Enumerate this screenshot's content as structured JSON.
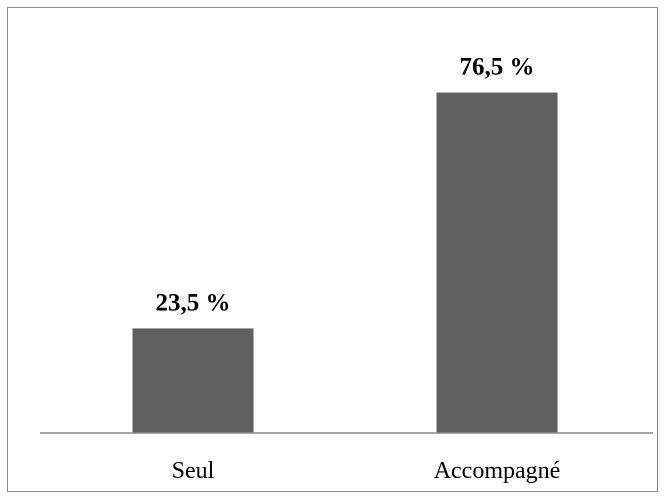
{
  "chart_data": {
    "type": "bar",
    "categories": [
      "Seul",
      "Accompagné"
    ],
    "values": [
      23.5,
      76.5
    ],
    "data_labels": [
      "23,5 %",
      "76,5 %"
    ],
    "title": "",
    "xlabel": "",
    "ylabel": "",
    "ylim": [
      0,
      100
    ],
    "grid": false,
    "legend": "none",
    "colors": {
      "bar": "#5f5f5f",
      "axis": "#8a8a8a",
      "border": "#8a8a8a"
    }
  }
}
